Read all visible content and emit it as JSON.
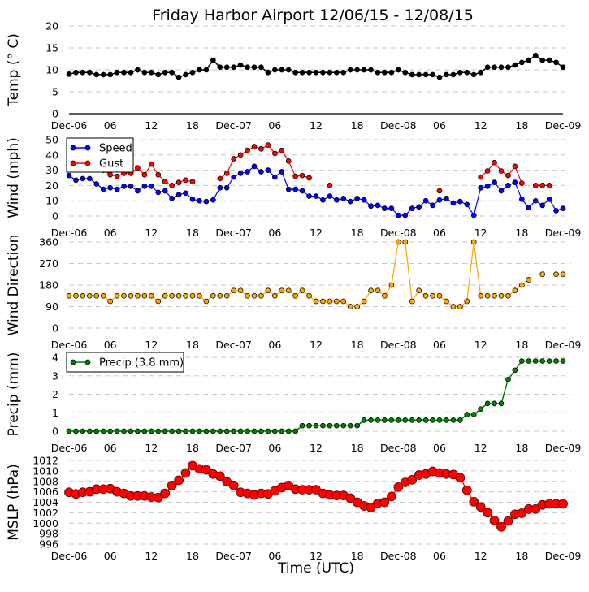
{
  "chart_data": [
    {
      "type": "line",
      "id": "temp",
      "title": "Friday Harbor Airport 12/06/15 - 12/08/15",
      "ylabel": "Temp (° C)",
      "xlabel": "",
      "ylim": [
        0,
        20
      ],
      "yticks": [
        "0",
        "5",
        "10",
        "15",
        "20"
      ],
      "xlim_hours": [
        0,
        72
      ],
      "xticks": [
        "Dec-06",
        "06",
        "12",
        "18",
        "Dec-07",
        "06",
        "12",
        "18",
        "Dec-08",
        "06",
        "12",
        "18",
        "Dec-09"
      ],
      "grid": true,
      "series": [
        {
          "name": "Temp",
          "color": "#000000",
          "values": [
            9,
            9.4,
            9.4,
            9.4,
            8.9,
            8.9,
            8.9,
            9.4,
            9.4,
            9.4,
            10,
            9.4,
            9.4,
            8.9,
            9.4,
            9.4,
            8.3,
            8.9,
            9.4,
            10,
            10,
            12.2,
            10.6,
            10.6,
            10.6,
            11.1,
            10.6,
            10.6,
            10.6,
            9.4,
            10,
            10,
            10,
            9.4,
            9.4,
            9.4,
            9.4,
            9.4,
            9.4,
            9.4,
            9.4,
            10,
            10,
            10,
            10,
            9.4,
            9.4,
            9.4,
            10,
            9.4,
            8.9,
            8.9,
            8.9,
            8.9,
            8.3,
            8.9,
            8.9,
            9.4,
            9.4,
            8.9,
            9.4,
            10.6,
            10.6,
            10.6,
            10.6,
            11.1,
            11.7,
            12.2,
            13.3,
            12.2,
            12.2,
            11.7,
            10.6
          ]
        }
      ]
    },
    {
      "type": "line",
      "id": "wind",
      "ylabel": "Wind (mph)",
      "ylim": [
        0,
        50
      ],
      "yticks": [
        "0",
        "10",
        "20",
        "30",
        "40",
        "50"
      ],
      "xticks": [
        "Dec-06",
        "06",
        "12",
        "18",
        "Dec-07",
        "06",
        "12",
        "18",
        "Dec-08",
        "06",
        "12",
        "18",
        "Dec-09"
      ],
      "legend": "top-left",
      "grid": true,
      "series": [
        {
          "name": "Speed",
          "color": "#0000ff",
          "values": [
            26.5,
            23.5,
            24.5,
            24.5,
            21,
            17.5,
            18.5,
            17.5,
            19.5,
            19.5,
            16.5,
            19.5,
            19.5,
            15.5,
            16.5,
            11.5,
            14,
            15,
            11,
            10,
            9.5,
            10.5,
            18.5,
            18.5,
            25.5,
            28,
            29,
            32.5,
            29,
            30,
            25.5,
            29,
            17.5,
            17.5,
            16.5,
            13,
            13,
            10.5,
            13,
            10.5,
            11.5,
            9.5,
            11.5,
            10.5,
            6.5,
            7,
            5,
            5,
            0.5,
            0.5,
            5,
            6,
            10,
            7,
            10.5,
            11.5,
            8.5,
            9.5,
            7.5,
            0.5,
            18.5,
            19.5,
            22,
            16.5,
            20,
            22,
            11,
            5.5,
            10,
            7,
            11,
            3.5,
            5
          ]
        },
        {
          "name": "Gust",
          "color": "#ff0000",
          "values": [
            null,
            null,
            null,
            null,
            null,
            30,
            27,
            26,
            28,
            28,
            31.5,
            27,
            34,
            27,
            22.5,
            20,
            22,
            23.5,
            22.5,
            null,
            null,
            null,
            24.5,
            28,
            37.5,
            40,
            43,
            45.5,
            44,
            46.5,
            41,
            43,
            36,
            26,
            26.5,
            25,
            null,
            null,
            20,
            null,
            null,
            null,
            null,
            null,
            null,
            null,
            null,
            null,
            null,
            null,
            null,
            null,
            null,
            null,
            16.5,
            null,
            null,
            null,
            null,
            null,
            25.5,
            29.5,
            35,
            29.5,
            26.5,
            32.5,
            21.5,
            null,
            20,
            20,
            20,
            null,
            null
          ]
        }
      ]
    },
    {
      "type": "line",
      "id": "dir",
      "ylabel": "Wind Direction",
      "ylim": [
        0,
        360
      ],
      "yticks": [
        "0",
        "90",
        "180",
        "270",
        "360"
      ],
      "xticks": [
        "Dec-06",
        "06",
        "12",
        "18",
        "Dec-07",
        "06",
        "12",
        "18",
        "Dec-08",
        "06",
        "12",
        "18",
        "Dec-09"
      ],
      "grid": true,
      "series": [
        {
          "name": "Direction",
          "color": "#ffa500",
          "values": [
            135,
            135,
            135,
            135,
            135,
            135,
            112,
            135,
            135,
            135,
            135,
            135,
            135,
            112,
            135,
            135,
            135,
            135,
            135,
            135,
            112,
            135,
            135,
            135,
            157,
            157,
            135,
            135,
            135,
            157,
            135,
            157,
            157,
            135,
            157,
            135,
            112,
            112,
            112,
            112,
            112,
            90,
            90,
            112,
            157,
            157,
            135,
            180,
            360,
            360,
            112,
            157,
            135,
            135,
            135,
            112,
            90,
            90,
            112,
            360,
            135,
            135,
            135,
            135,
            135,
            157,
            180,
            202,
            null,
            225,
            null,
            225,
            225
          ]
        }
      ]
    },
    {
      "type": "line",
      "id": "precip",
      "ylabel": "Precip (mm)",
      "ylim": [
        0,
        4
      ],
      "yticks": [
        "0",
        "1",
        "2",
        "3",
        "4"
      ],
      "xticks": [
        "Dec-06",
        "06",
        "12",
        "18",
        "Dec-07",
        "06",
        "12",
        "18",
        "Dec-08",
        "06",
        "12",
        "18",
        "Dec-09"
      ],
      "legend": "top-left",
      "grid": true,
      "series": [
        {
          "name": "Precip (3.8 mm)",
          "color": "#008000",
          "values": [
            0,
            0,
            0,
            0,
            0,
            0,
            0,
            0,
            0,
            0,
            0,
            0,
            0,
            0,
            0,
            0,
            0,
            0,
            0,
            0,
            0,
            0,
            0,
            0,
            0,
            0,
            0,
            0,
            0,
            0,
            0,
            0,
            0,
            0,
            0.3,
            0.3,
            0.3,
            0.3,
            0.3,
            0.3,
            0.3,
            0.3,
            0.3,
            0.6,
            0.6,
            0.6,
            0.6,
            0.6,
            0.6,
            0.6,
            0.6,
            0.6,
            0.6,
            0.6,
            0.6,
            0.6,
            0.6,
            0.6,
            0.9,
            0.9,
            1.2,
            1.5,
            1.5,
            1.5,
            2.8,
            3.3,
            3.8,
            3.8,
            3.8,
            3.8,
            3.8,
            3.8,
            3.8
          ]
        }
      ]
    },
    {
      "type": "line",
      "id": "mslp",
      "ylabel": "MSLP (hPa)",
      "xlabel": "Time (UTC)",
      "ylim": [
        996,
        1012
      ],
      "yticks": [
        "996",
        "998",
        "1000",
        "1002",
        "1004",
        "1006",
        "1008",
        "1010",
        "1012"
      ],
      "xticks": [
        "Dec-06",
        "06",
        "12",
        "18",
        "Dec-07",
        "06",
        "12",
        "18",
        "Dec-08",
        "06",
        "12",
        "18",
        "Dec-09"
      ],
      "grid": true,
      "series": [
        {
          "name": "MSLP",
          "color": "#ff0000",
          "values": [
            1005.9,
            1005.6,
            1005.9,
            1006,
            1006.5,
            1006.5,
            1006.6,
            1006,
            1005.7,
            1005.2,
            1005.2,
            1005.2,
            1005,
            1004.9,
            1005.7,
            1007.2,
            1008.2,
            1009.6,
            1011,
            1010.4,
            1010.2,
            1009.4,
            1009,
            1007.9,
            1007.2,
            1005.9,
            1005.7,
            1005.4,
            1005.7,
            1005.6,
            1006.2,
            1006.8,
            1007.2,
            1006.5,
            1006.4,
            1006.4,
            1006.4,
            1005.7,
            1005.4,
            1005.3,
            1005.3,
            1004.8,
            1004,
            1003.3,
            1003,
            1003.8,
            1004,
            1005.1,
            1006.9,
            1007.8,
            1008.3,
            1009.2,
            1009.4,
            1009.9,
            1009.6,
            1009.4,
            1009.3,
            1008.7,
            1006.3,
            1004.1,
            1003.1,
            1002,
            1000.5,
            999.3,
            1000.4,
            1001.7,
            1001.9,
            1002.7,
            1002.7,
            1003.5,
            1003.7,
            1003.7,
            1003.7
          ]
        }
      ]
    }
  ]
}
